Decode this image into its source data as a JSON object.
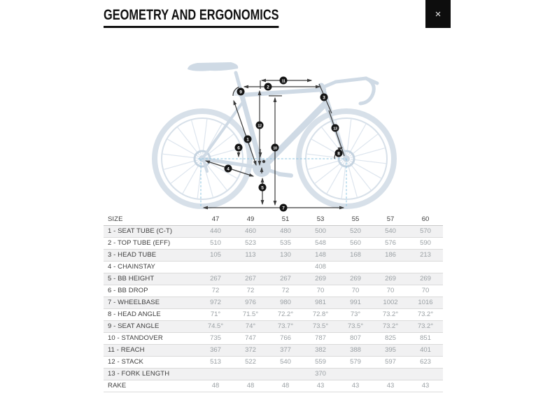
{
  "header": {
    "title": "GEOMETRY AND ERGONOMICS",
    "close_button": {
      "icon": "×"
    }
  },
  "diagram": {
    "description": "bike frame geometry diagram with numbered measurement markers",
    "markers": [
      {
        "number": "1",
        "name": "seat-tube"
      },
      {
        "number": "2",
        "name": "top-tube"
      },
      {
        "number": "3",
        "name": "head-tube"
      },
      {
        "number": "4",
        "name": "chainstay"
      },
      {
        "number": "5",
        "name": "bb-height"
      },
      {
        "number": "6",
        "name": "bb-drop"
      },
      {
        "number": "7",
        "name": "wheelbase"
      },
      {
        "number": "8",
        "name": "head-angle"
      },
      {
        "number": "9",
        "name": "seat-angle"
      },
      {
        "number": "10",
        "name": "standover"
      },
      {
        "number": "11",
        "name": "reach"
      },
      {
        "number": "12",
        "name": "stack"
      },
      {
        "number": "13",
        "name": "fork-length"
      }
    ],
    "colors": {
      "silhouette": "#cfdae5",
      "annotation": "#3a3a3a",
      "marker_bg": "#141414",
      "marker_text": "#ffffff",
      "dashed_guide": "#8ec6e2"
    }
  },
  "table": {
    "header": {
      "size_label": "SIZE",
      "sizes": [
        "47",
        "49",
        "51",
        "53",
        "55",
        "57",
        "60"
      ]
    },
    "rows": [
      {
        "label": "1 - SEAT TUBE (C-T)",
        "values": [
          "440",
          "460",
          "480",
          "500",
          "520",
          "540",
          "570"
        ]
      },
      {
        "label": "2 - TOP TUBE (EFF)",
        "values": [
          "510",
          "523",
          "535",
          "548",
          "560",
          "576",
          "590"
        ]
      },
      {
        "label": "3 - HEAD TUBE",
        "values": [
          "105",
          "113",
          "130",
          "148",
          "168",
          "186",
          "213"
        ]
      },
      {
        "label": "4 - CHAINSTAY",
        "values": [
          "",
          "",
          "",
          "408",
          "",
          "",
          ""
        ]
      },
      {
        "label": "5 - BB HEIGHT",
        "values": [
          "267",
          "267",
          "267",
          "269",
          "269",
          "269",
          "269"
        ]
      },
      {
        "label": "6 - BB DROP",
        "values": [
          "72",
          "72",
          "72",
          "70",
          "70",
          "70",
          "70"
        ]
      },
      {
        "label": "7 - WHEELBASE",
        "values": [
          "972",
          "976",
          "980",
          "981",
          "991",
          "1002",
          "1016"
        ]
      },
      {
        "label": "8 - HEAD ANGLE",
        "values": [
          "71°",
          "71.5°",
          "72.2°",
          "72.8°",
          "73°",
          "73.2°",
          "73.2°"
        ]
      },
      {
        "label": "9 - SEAT ANGLE",
        "values": [
          "74.5°",
          "74°",
          "73.7°",
          "73.5°",
          "73.5°",
          "73.2°",
          "73.2°"
        ]
      },
      {
        "label": "10 - STANDOVER",
        "values": [
          "735",
          "747",
          "766",
          "787",
          "807",
          "825",
          "851"
        ]
      },
      {
        "label": "11 - REACH",
        "values": [
          "367",
          "372",
          "377",
          "382",
          "388",
          "395",
          "401"
        ]
      },
      {
        "label": "12 - STACK",
        "values": [
          "513",
          "522",
          "540",
          "559",
          "579",
          "597",
          "623"
        ]
      },
      {
        "label": "13 - FORK LENGTH",
        "values": [
          "",
          "",
          "",
          "370",
          "",
          "",
          ""
        ]
      },
      {
        "label": "RAKE",
        "values": [
          "48",
          "48",
          "48",
          "43",
          "43",
          "43",
          "43"
        ]
      }
    ]
  }
}
